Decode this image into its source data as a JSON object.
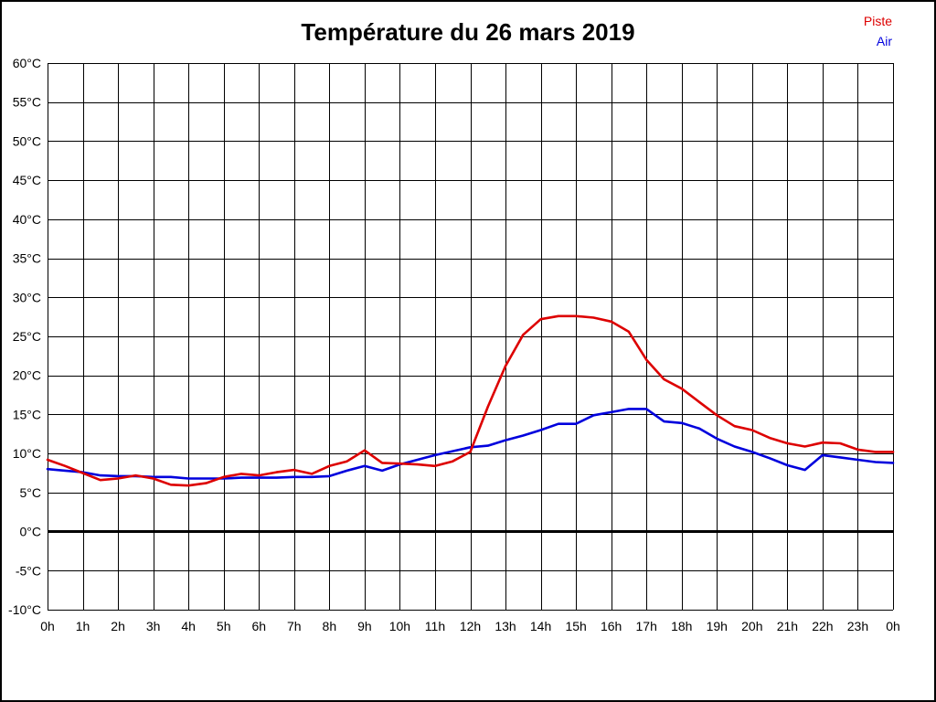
{
  "title": "Température du 26 mars 2019",
  "legend": [
    {
      "label": "Piste",
      "color": "#dd0000"
    },
    {
      "label": "Air",
      "color": "#0000dd"
    }
  ],
  "chart_data": {
    "type": "line",
    "title": "Température du 26 mars 2019",
    "xlabel": "",
    "ylabel": "",
    "xlim": [
      0,
      24
    ],
    "ylim": [
      -10,
      60
    ],
    "grid": true,
    "zero_line_bold": true,
    "legend_position": "top-right",
    "x_tick_labels": [
      "0h",
      "1h",
      "2h",
      "3h",
      "4h",
      "5h",
      "6h",
      "7h",
      "8h",
      "9h",
      "10h",
      "11h",
      "12h",
      "13h",
      "14h",
      "15h",
      "16h",
      "17h",
      "18h",
      "19h",
      "20h",
      "21h",
      "22h",
      "23h",
      "0h"
    ],
    "y_ticks": [
      60,
      55,
      50,
      45,
      40,
      35,
      30,
      25,
      20,
      15,
      10,
      5,
      0,
      -5,
      -10
    ],
    "y_tick_labels": [
      "60°C",
      "55°C",
      "50°C",
      "45°C",
      "40°C",
      "35°C",
      "30°C",
      "25°C",
      "20°C",
      "15°C",
      "10°C",
      "5°C",
      "0°C",
      "-5°C",
      "-10°C"
    ],
    "x": [
      0,
      0.5,
      1,
      1.5,
      2,
      2.5,
      3,
      3.5,
      4,
      4.5,
      5,
      5.5,
      6,
      6.5,
      7,
      7.5,
      8,
      8.5,
      9,
      9.5,
      10,
      10.5,
      11,
      11.5,
      12,
      12.5,
      13,
      13.5,
      14,
      14.5,
      15,
      15.5,
      16,
      16.5,
      17,
      17.5,
      18,
      18.5,
      19,
      19.5,
      20,
      20.5,
      21,
      21.5,
      22,
      22.5,
      23,
      23.5,
      24
    ],
    "series": [
      {
        "name": "Piste",
        "color": "#dd0000",
        "values": [
          9.2,
          8.4,
          7.5,
          6.6,
          6.8,
          7.2,
          6.8,
          6.0,
          5.9,
          6.2,
          7.0,
          7.4,
          7.2,
          7.6,
          7.9,
          7.4,
          8.4,
          9.0,
          10.4,
          8.8,
          8.7,
          8.6,
          8.4,
          9.0,
          10.2,
          16.0,
          21.2,
          25.2,
          27.2,
          27.6,
          27.6,
          27.4,
          26.9,
          25.6,
          22.0,
          19.5,
          18.3,
          16.6,
          14.9,
          13.5,
          13.0,
          12.0,
          11.3,
          10.9,
          11.4,
          11.3,
          10.5,
          10.2,
          10.2
        ]
      },
      {
        "name": "Air",
        "color": "#0000dd",
        "values": [
          8.0,
          7.8,
          7.6,
          7.2,
          7.1,
          7.1,
          7.0,
          7.0,
          6.8,
          6.8,
          6.8,
          6.9,
          6.9,
          6.9,
          7.0,
          7.0,
          7.1,
          7.8,
          8.4,
          7.8,
          8.6,
          9.2,
          9.8,
          10.3,
          10.8,
          11.0,
          11.7,
          12.3,
          13.0,
          13.8,
          13.8,
          14.9,
          15.3,
          15.7,
          15.7,
          14.1,
          13.9,
          13.2,
          11.9,
          10.9,
          10.2,
          9.4,
          8.5,
          7.9,
          9.8,
          9.5,
          9.2,
          8.9,
          8.8
        ]
      }
    ]
  }
}
